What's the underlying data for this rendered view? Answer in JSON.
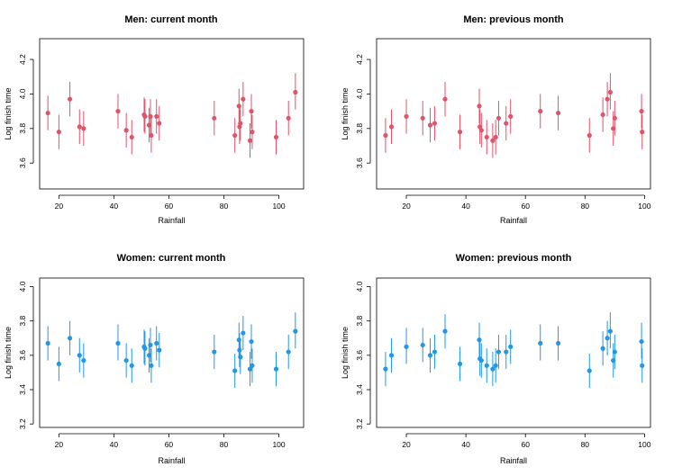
{
  "colors": {
    "men": "#DF536B",
    "women": "#2297E6"
  },
  "chart_data": [
    {
      "type": "scatter",
      "title": "Men: current month",
      "xlabel": "Rainfall",
      "ylabel": "Log finish time",
      "color": "#DF536B",
      "xlim": [
        13,
        109
      ],
      "ylim": [
        3.45,
        4.32
      ],
      "xticks": [
        20,
        40,
        60,
        80,
        100
      ],
      "yticks": [
        3.6,
        3.8,
        4.0,
        4.2
      ],
      "points": [
        {
          "x": 16,
          "y": 3.89,
          "lo": 3.79,
          "hi": 3.99
        },
        {
          "x": 20,
          "y": 3.78,
          "lo": 3.68,
          "hi": 3.88
        },
        {
          "x": 24,
          "y": 3.97,
          "lo": 3.87,
          "hi": 4.07
        },
        {
          "x": 27.5,
          "y": 3.81,
          "lo": 3.71,
          "hi": 3.91
        },
        {
          "x": 29,
          "y": 3.8,
          "lo": 3.7,
          "hi": 3.9
        },
        {
          "x": 41.5,
          "y": 3.9,
          "lo": 3.8,
          "hi": 4.0
        },
        {
          "x": 44.5,
          "y": 3.79,
          "lo": 3.69,
          "hi": 3.89
        },
        {
          "x": 46.5,
          "y": 3.75,
          "lo": 3.65,
          "hi": 3.85
        },
        {
          "x": 51,
          "y": 3.88,
          "lo": 3.78,
          "hi": 3.98
        },
        {
          "x": 51.3,
          "y": 3.87,
          "lo": 3.77,
          "hi": 3.97
        },
        {
          "x": 52.8,
          "y": 3.82,
          "lo": 3.72,
          "hi": 3.92
        },
        {
          "x": 53.3,
          "y": 3.87,
          "lo": 3.77,
          "hi": 3.97
        },
        {
          "x": 53.6,
          "y": 3.76,
          "lo": 3.66,
          "hi": 3.86
        },
        {
          "x": 55.5,
          "y": 3.87,
          "lo": 3.77,
          "hi": 3.97
        },
        {
          "x": 56.5,
          "y": 3.83,
          "lo": 3.73,
          "hi": 3.93
        },
        {
          "x": 76.5,
          "y": 3.86,
          "lo": 3.76,
          "hi": 3.96
        },
        {
          "x": 84,
          "y": 3.76,
          "lo": 3.66,
          "hi": 3.86
        },
        {
          "x": 85.5,
          "y": 3.93,
          "lo": 3.83,
          "hi": 4.03
        },
        {
          "x": 85.7,
          "y": 3.81,
          "lo": 3.71,
          "hi": 3.91
        },
        {
          "x": 86,
          "y": 3.83,
          "lo": 3.73,
          "hi": 3.93
        },
        {
          "x": 87,
          "y": 3.97,
          "lo": 3.87,
          "hi": 4.07
        },
        {
          "x": 89.5,
          "y": 3.73,
          "lo": 3.63,
          "hi": 3.83
        },
        {
          "x": 90,
          "y": 3.9,
          "lo": 3.8,
          "hi": 4.0
        },
        {
          "x": 90.3,
          "y": 3.78,
          "lo": 3.68,
          "hi": 3.88
        },
        {
          "x": 99,
          "y": 3.75,
          "lo": 3.65,
          "hi": 3.85
        },
        {
          "x": 103.5,
          "y": 3.86,
          "lo": 3.76,
          "hi": 3.96
        },
        {
          "x": 106,
          "y": 4.01,
          "lo": 3.91,
          "hi": 4.12
        }
      ]
    },
    {
      "type": "scatter",
      "title": "Men: previous month",
      "xlabel": "Rainfall",
      "ylabel": "Log finish time",
      "color": "#DF536B",
      "xlim": [
        10,
        102
      ],
      "ylim": [
        3.45,
        4.32
      ],
      "xticks": [
        20,
        40,
        60,
        80,
        100
      ],
      "yticks": [
        3.6,
        3.8,
        4.0,
        4.2
      ],
      "points": [
        {
          "x": 13,
          "y": 3.76,
          "lo": 3.66,
          "hi": 3.86
        },
        {
          "x": 15,
          "y": 3.81,
          "lo": 3.71,
          "hi": 3.91
        },
        {
          "x": 20,
          "y": 3.87,
          "lo": 3.77,
          "hi": 3.97
        },
        {
          "x": 25.5,
          "y": 3.86,
          "lo": 3.76,
          "hi": 3.96
        },
        {
          "x": 28,
          "y": 3.82,
          "lo": 3.72,
          "hi": 3.92
        },
        {
          "x": 29.5,
          "y": 3.83,
          "lo": 3.73,
          "hi": 3.93
        },
        {
          "x": 33,
          "y": 3.97,
          "lo": 3.87,
          "hi": 4.07
        },
        {
          "x": 38,
          "y": 3.78,
          "lo": 3.68,
          "hi": 3.88
        },
        {
          "x": 44.5,
          "y": 3.93,
          "lo": 3.83,
          "hi": 4.03
        },
        {
          "x": 44.7,
          "y": 3.81,
          "lo": 3.71,
          "hi": 3.91
        },
        {
          "x": 45.2,
          "y": 3.79,
          "lo": 3.69,
          "hi": 3.89
        },
        {
          "x": 47,
          "y": 3.75,
          "lo": 3.65,
          "hi": 3.85
        },
        {
          "x": 49,
          "y": 3.73,
          "lo": 3.63,
          "hi": 3.83
        },
        {
          "x": 50,
          "y": 3.75,
          "lo": 3.65,
          "hi": 3.85
        },
        {
          "x": 51,
          "y": 3.86,
          "lo": 3.76,
          "hi": 3.96
        },
        {
          "x": 53.5,
          "y": 3.83,
          "lo": 3.73,
          "hi": 3.93
        },
        {
          "x": 55,
          "y": 3.87,
          "lo": 3.77,
          "hi": 3.97
        },
        {
          "x": 65,
          "y": 3.9,
          "lo": 3.8,
          "hi": 4.0
        },
        {
          "x": 71,
          "y": 3.89,
          "lo": 3.79,
          "hi": 3.99
        },
        {
          "x": 81.5,
          "y": 3.76,
          "lo": 3.66,
          "hi": 3.86
        },
        {
          "x": 86,
          "y": 3.88,
          "lo": 3.78,
          "hi": 3.98
        },
        {
          "x": 87.5,
          "y": 3.97,
          "lo": 3.87,
          "hi": 4.07
        },
        {
          "x": 88.5,
          "y": 4.01,
          "lo": 3.91,
          "hi": 4.12
        },
        {
          "x": 89.5,
          "y": 3.8,
          "lo": 3.7,
          "hi": 3.9
        },
        {
          "x": 90,
          "y": 3.86,
          "lo": 3.76,
          "hi": 3.96
        },
        {
          "x": 99,
          "y": 3.9,
          "lo": 3.8,
          "hi": 4.0
        },
        {
          "x": 99.2,
          "y": 3.78,
          "lo": 3.68,
          "hi": 3.88
        }
      ]
    },
    {
      "type": "scatter",
      "title": "Women: current month",
      "xlabel": "Rainfall",
      "ylabel": "Log finish time",
      "color": "#2297E6",
      "xlim": [
        13,
        109
      ],
      "ylim": [
        3.18,
        4.05
      ],
      "xticks": [
        20,
        40,
        60,
        80,
        100
      ],
      "yticks": [
        3.2,
        3.4,
        3.6,
        3.8,
        4.0
      ],
      "points": [
        {
          "x": 16,
          "y": 3.67,
          "lo": 3.57,
          "hi": 3.77
        },
        {
          "x": 20,
          "y": 3.55,
          "lo": 3.45,
          "hi": 3.65
        },
        {
          "x": 24,
          "y": 3.7,
          "lo": 3.6,
          "hi": 3.8
        },
        {
          "x": 27.5,
          "y": 3.6,
          "lo": 3.5,
          "hi": 3.7
        },
        {
          "x": 29,
          "y": 3.57,
          "lo": 3.47,
          "hi": 3.67
        },
        {
          "x": 41.5,
          "y": 3.67,
          "lo": 3.57,
          "hi": 3.78
        },
        {
          "x": 44.5,
          "y": 3.57,
          "lo": 3.47,
          "hi": 3.67
        },
        {
          "x": 46.5,
          "y": 3.54,
          "lo": 3.44,
          "hi": 3.64
        },
        {
          "x": 51,
          "y": 3.65,
          "lo": 3.55,
          "hi": 3.75
        },
        {
          "x": 51.3,
          "y": 3.64,
          "lo": 3.54,
          "hi": 3.74
        },
        {
          "x": 52.8,
          "y": 3.6,
          "lo": 3.5,
          "hi": 3.7
        },
        {
          "x": 53.3,
          "y": 3.66,
          "lo": 3.56,
          "hi": 3.76
        },
        {
          "x": 53.6,
          "y": 3.54,
          "lo": 3.44,
          "hi": 3.64
        },
        {
          "x": 55.5,
          "y": 3.67,
          "lo": 3.57,
          "hi": 3.77
        },
        {
          "x": 56.5,
          "y": 3.63,
          "lo": 3.53,
          "hi": 3.73
        },
        {
          "x": 76.5,
          "y": 3.62,
          "lo": 3.52,
          "hi": 3.72
        },
        {
          "x": 84,
          "y": 3.51,
          "lo": 3.41,
          "hi": 3.61
        },
        {
          "x": 85.5,
          "y": 3.69,
          "lo": 3.59,
          "hi": 3.79
        },
        {
          "x": 85.7,
          "y": 3.63,
          "lo": 3.53,
          "hi": 3.73
        },
        {
          "x": 86,
          "y": 3.59,
          "lo": 3.49,
          "hi": 3.69
        },
        {
          "x": 87,
          "y": 3.73,
          "lo": 3.63,
          "hi": 3.83
        },
        {
          "x": 89.5,
          "y": 3.52,
          "lo": 3.42,
          "hi": 3.62
        },
        {
          "x": 90,
          "y": 3.68,
          "lo": 3.58,
          "hi": 3.78
        },
        {
          "x": 90.3,
          "y": 3.54,
          "lo": 3.44,
          "hi": 3.64
        },
        {
          "x": 99,
          "y": 3.52,
          "lo": 3.42,
          "hi": 3.62
        },
        {
          "x": 103.5,
          "y": 3.62,
          "lo": 3.52,
          "hi": 3.72
        },
        {
          "x": 106,
          "y": 3.74,
          "lo": 3.64,
          "hi": 3.85
        }
      ]
    },
    {
      "type": "scatter",
      "title": "Women: previous month",
      "xlabel": "Rainfall",
      "ylabel": "Log finish time",
      "color": "#2297E6",
      "xlim": [
        10,
        102
      ],
      "ylim": [
        3.18,
        4.05
      ],
      "xticks": [
        20,
        40,
        60,
        80,
        100
      ],
      "yticks": [
        3.2,
        3.4,
        3.6,
        3.8,
        4.0
      ],
      "points": [
        {
          "x": 13,
          "y": 3.52,
          "lo": 3.42,
          "hi": 3.62
        },
        {
          "x": 15,
          "y": 3.6,
          "lo": 3.5,
          "hi": 3.7
        },
        {
          "x": 20,
          "y": 3.65,
          "lo": 3.55,
          "hi": 3.76
        },
        {
          "x": 25.5,
          "y": 3.66,
          "lo": 3.56,
          "hi": 3.76
        },
        {
          "x": 28,
          "y": 3.6,
          "lo": 3.5,
          "hi": 3.7
        },
        {
          "x": 29.5,
          "y": 3.62,
          "lo": 3.52,
          "hi": 3.72
        },
        {
          "x": 33,
          "y": 3.74,
          "lo": 3.64,
          "hi": 3.84
        },
        {
          "x": 38,
          "y": 3.55,
          "lo": 3.45,
          "hi": 3.65
        },
        {
          "x": 44.5,
          "y": 3.69,
          "lo": 3.59,
          "hi": 3.79
        },
        {
          "x": 44.7,
          "y": 3.58,
          "lo": 3.48,
          "hi": 3.68
        },
        {
          "x": 45.2,
          "y": 3.57,
          "lo": 3.47,
          "hi": 3.67
        },
        {
          "x": 47,
          "y": 3.54,
          "lo": 3.44,
          "hi": 3.64
        },
        {
          "x": 49,
          "y": 3.52,
          "lo": 3.42,
          "hi": 3.62
        },
        {
          "x": 50,
          "y": 3.54,
          "lo": 3.44,
          "hi": 3.64
        },
        {
          "x": 51,
          "y": 3.62,
          "lo": 3.52,
          "hi": 3.72
        },
        {
          "x": 53.5,
          "y": 3.62,
          "lo": 3.52,
          "hi": 3.72
        },
        {
          "x": 55,
          "y": 3.65,
          "lo": 3.55,
          "hi": 3.75
        },
        {
          "x": 65,
          "y": 3.67,
          "lo": 3.57,
          "hi": 3.78
        },
        {
          "x": 71,
          "y": 3.67,
          "lo": 3.57,
          "hi": 3.77
        },
        {
          "x": 81.5,
          "y": 3.51,
          "lo": 3.41,
          "hi": 3.61
        },
        {
          "x": 86,
          "y": 3.64,
          "lo": 3.54,
          "hi": 3.74
        },
        {
          "x": 87.5,
          "y": 3.7,
          "lo": 3.6,
          "hi": 3.8
        },
        {
          "x": 88.5,
          "y": 3.74,
          "lo": 3.64,
          "hi": 3.85
        },
        {
          "x": 89.5,
          "y": 3.57,
          "lo": 3.47,
          "hi": 3.67
        },
        {
          "x": 90,
          "y": 3.62,
          "lo": 3.52,
          "hi": 3.72
        },
        {
          "x": 99,
          "y": 3.68,
          "lo": 3.58,
          "hi": 3.79
        },
        {
          "x": 99.2,
          "y": 3.54,
          "lo": 3.44,
          "hi": 3.64
        }
      ]
    }
  ]
}
